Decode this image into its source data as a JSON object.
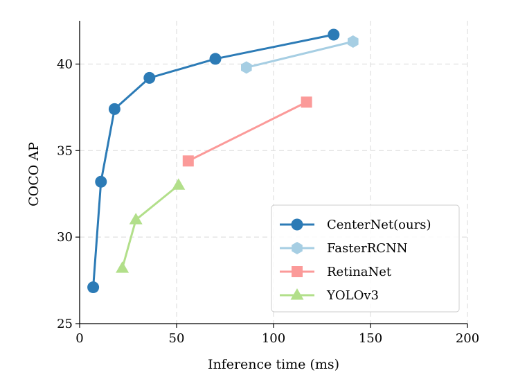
{
  "chart_data": {
    "type": "line",
    "xlabel": "Inference time (ms)",
    "ylabel": "COCO AP",
    "xlim": [
      0,
      200
    ],
    "ylim": [
      25,
      42.5
    ],
    "xticks": [
      "0",
      "50",
      "100",
      "150",
      "200"
    ],
    "yticks": [
      "25",
      "30",
      "35",
      "40"
    ],
    "grid": true,
    "legend_position": "bottom-right",
    "series": [
      {
        "name": "CenterNet(ours)",
        "marker": "circle",
        "color": "#2c7bb6",
        "x": [
          7,
          11,
          18,
          36,
          70,
          131
        ],
        "y": [
          27.1,
          33.2,
          37.4,
          39.2,
          40.3,
          41.7
        ]
      },
      {
        "name": "FasterRCNN",
        "marker": "hexagon",
        "color": "#a6cee3",
        "x": [
          86,
          141
        ],
        "y": [
          39.8,
          41.3
        ]
      },
      {
        "name": "RetinaNet",
        "marker": "square",
        "color": "#fb9a99",
        "x": [
          56,
          117
        ],
        "y": [
          34.4,
          37.8
        ]
      },
      {
        "name": "YOLOv3",
        "marker": "triangle",
        "color": "#b2df8a",
        "x": [
          22,
          29,
          51
        ],
        "y": [
          28.2,
          31.0,
          33.0
        ]
      }
    ]
  }
}
